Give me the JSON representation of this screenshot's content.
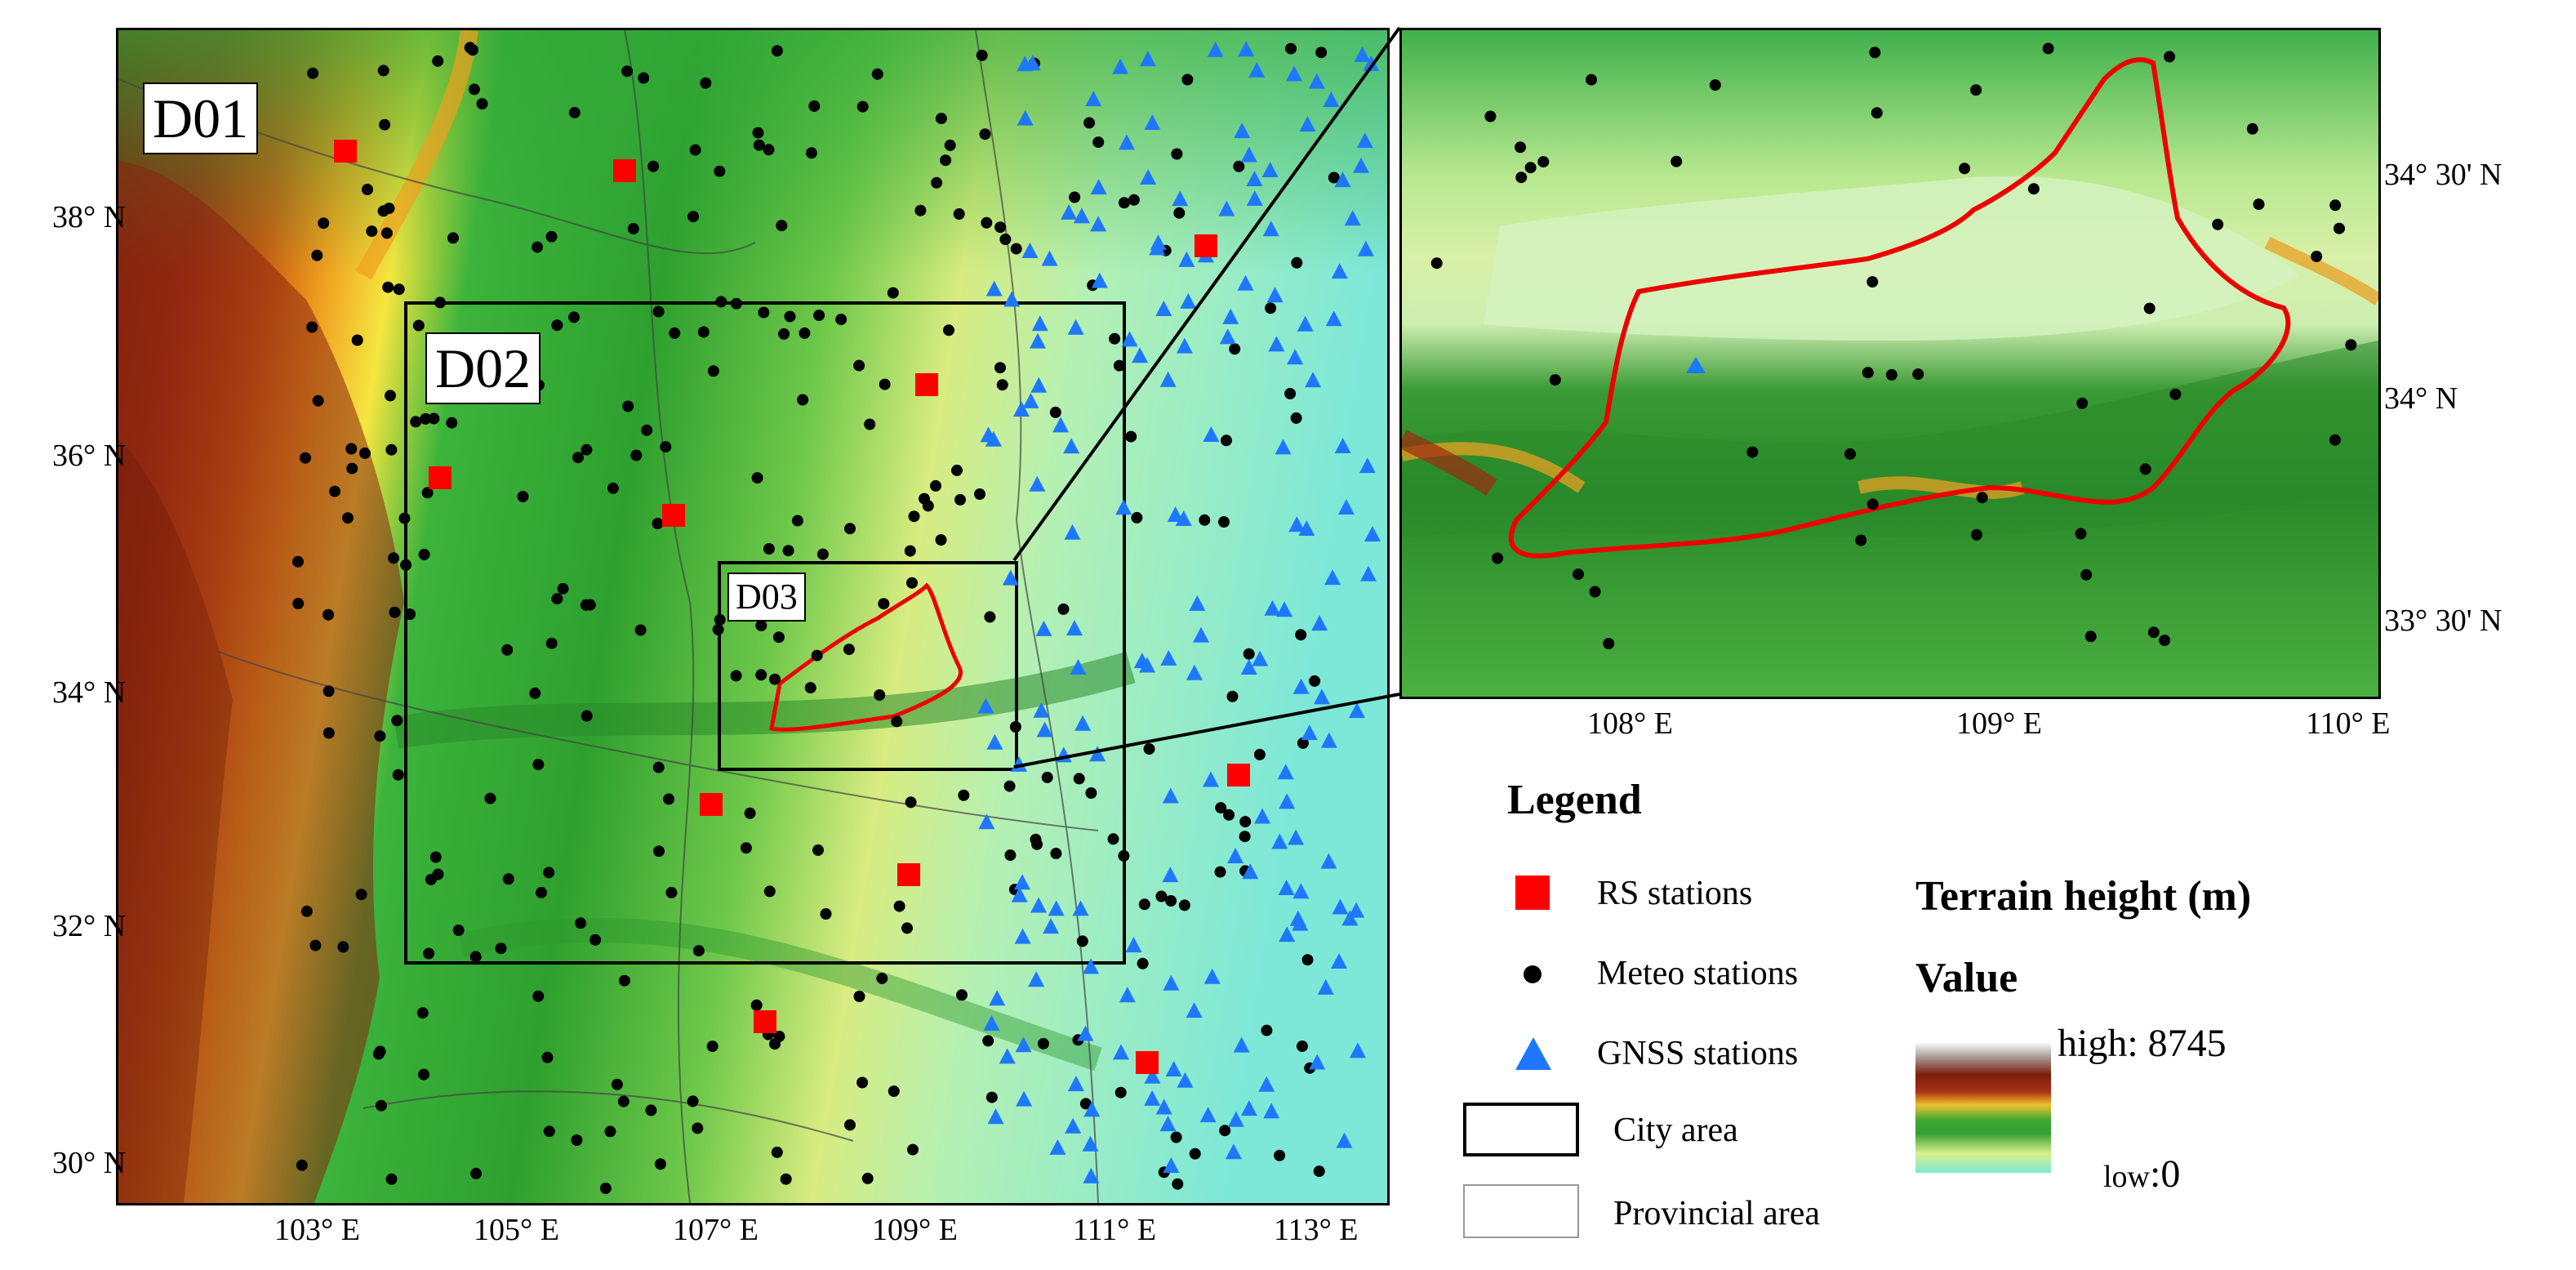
{
  "main_map": {
    "domain_labels": [
      "D01",
      "D02",
      "D03"
    ],
    "lat_ticks": [
      "38° N",
      "36° N",
      "34° N",
      "32° N",
      "30° N"
    ],
    "lon_ticks": [
      "103° E",
      "105° E",
      "107° E",
      "109° E",
      "111° E",
      "113° E"
    ]
  },
  "inset_map": {
    "lat_ticks": [
      "34° 30' N",
      "34° N",
      "33° 30' N"
    ],
    "lon_ticks": [
      "108° E",
      "109° E",
      "110° E"
    ]
  },
  "legend": {
    "title": "Legend",
    "items": [
      {
        "label": "RS stations",
        "symbol": "red-square",
        "color": "#ff0000"
      },
      {
        "label": "Meteo stations",
        "symbol": "black-dot",
        "color": "#000000"
      },
      {
        "label": "GNSS stations",
        "symbol": "blue-triangle",
        "color": "#1e78ff"
      },
      {
        "label": "City area",
        "symbol": "black-rectangle",
        "color": "#000000"
      },
      {
        "label": "Provincial area",
        "symbol": "gray-rectangle",
        "color": "#999999"
      }
    ],
    "terrain": {
      "title": "Terrain height  (m)",
      "value_label": "Value",
      "high_label": "high: 8745",
      "low_text": "low",
      "low_value": ":0"
    }
  }
}
